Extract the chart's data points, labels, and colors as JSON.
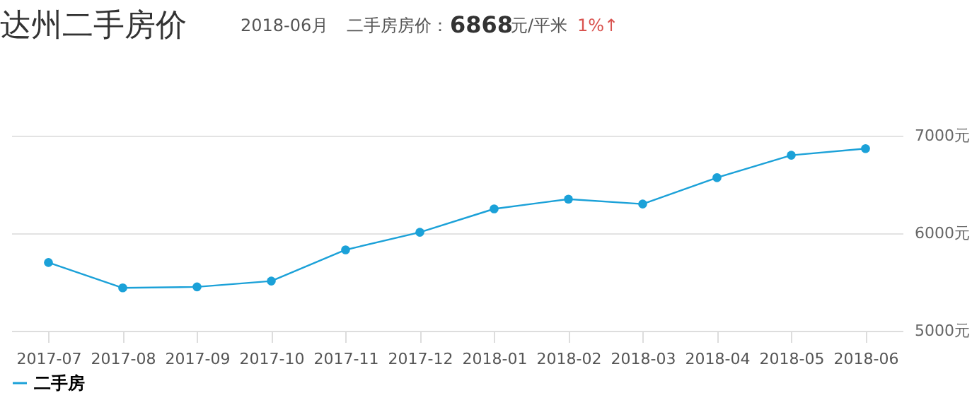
{
  "chart_data": {
    "type": "line",
    "title": "达州二手房价",
    "annotations": [
      "2018-06月",
      "二手房房价：",
      "6868",
      "元/平米",
      "1%↑"
    ],
    "categories": [
      "2017-07",
      "2017-08",
      "2017-09",
      "2017-10",
      "2017-11",
      "2017-12",
      "2018-01",
      "2018-02",
      "2018-03",
      "2018-04",
      "2018-05",
      "2018-06"
    ],
    "series": [
      {
        "name": "二手房",
        "color": "#1ba1d8",
        "values": [
          5700,
          5440,
          5450,
          5510,
          5830,
          6010,
          6250,
          6350,
          6300,
          6570,
          6800,
          6868
        ]
      }
    ],
    "ylim": [
      5000,
      7000
    ],
    "yticks": [
      {
        "value": 5000,
        "label": "5000元"
      },
      {
        "value": 6000,
        "label": "6000元"
      },
      {
        "value": 7000,
        "label": "7000元"
      }
    ],
    "grid": "y",
    "legend": "bottom",
    "marker": "circle",
    "line_style": "solid"
  }
}
